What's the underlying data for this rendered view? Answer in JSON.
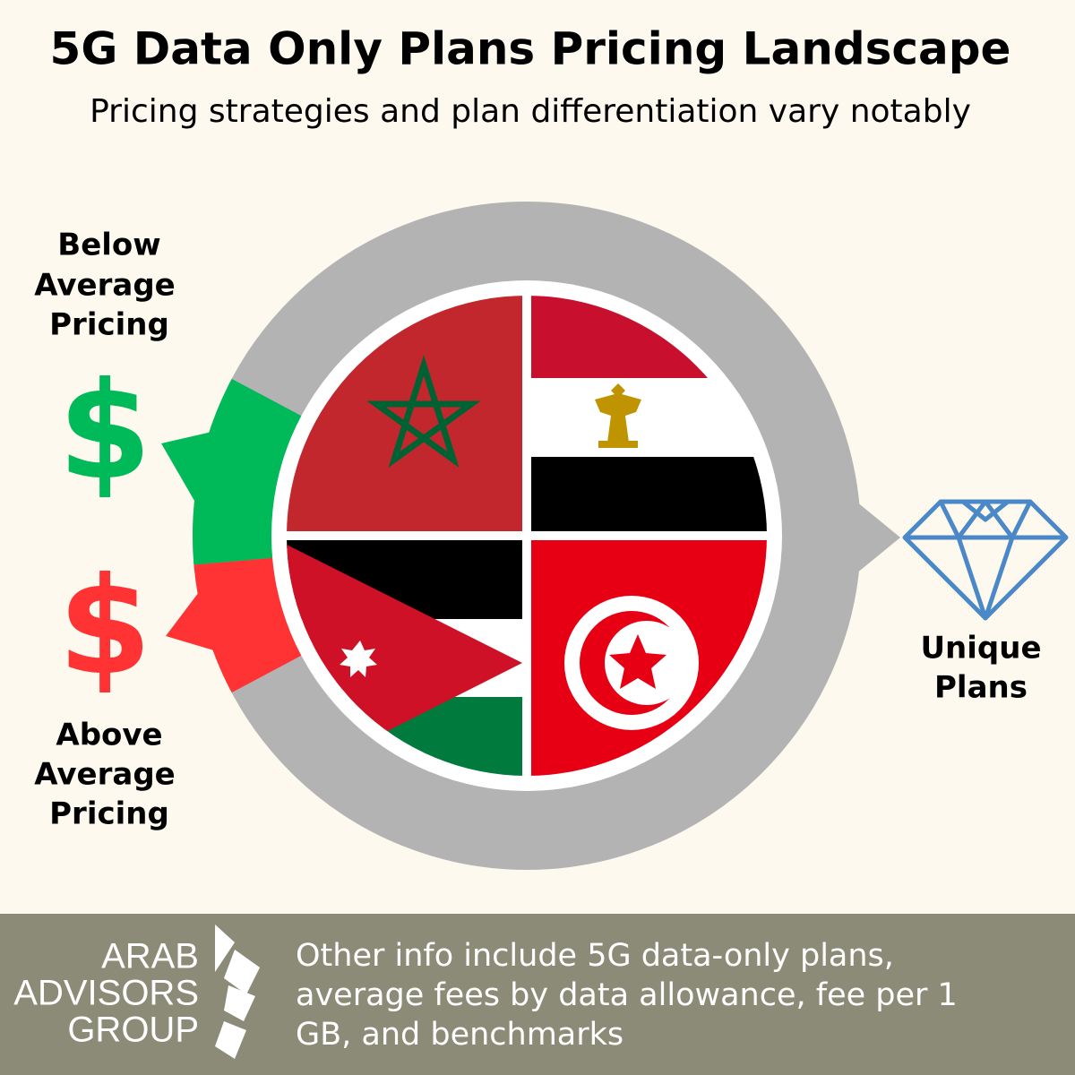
{
  "header": {
    "title": "5G Data Only Plans Pricing Landscape",
    "subtitle": "Pricing strategies and plan differentiation vary notably"
  },
  "below_average": {
    "lines": [
      "Below",
      "Average",
      "Pricing"
    ],
    "symbol": "$"
  },
  "above_average": {
    "lines": [
      "Above",
      "Average",
      "Pricing"
    ],
    "symbol": "$"
  },
  "unique_plans": {
    "lines": [
      "Unique",
      "Plans"
    ]
  },
  "footer": {
    "logo_lines": [
      "ARAB",
      "ADVISORS",
      "GROUP"
    ],
    "text_lines": [
      "Other info include 5G data-only plans,",
      "average fees by data allowance, fee per 1",
      "GB, and benchmarks"
    ]
  }
}
